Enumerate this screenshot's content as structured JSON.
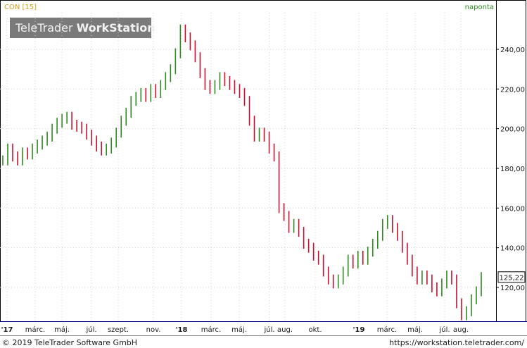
{
  "header": {
    "symbol_label": "CON [15]",
    "interval_label": "naponta",
    "symbol_color": "#d4a017",
    "interval_color": "#2e8b20"
  },
  "watermark": {
    "part1": "TeleTrader",
    "part2": "WorkStation"
  },
  "footer": {
    "copyright": "© 2019 TeleTrader Software GmbH",
    "url": "https://workstation.teletrader.com/"
  },
  "colors": {
    "up": "#2e8b20",
    "down": "#c8102e",
    "grid": "#cfcfcf",
    "last_box_border": "#000000",
    "bottom_line": "#000080"
  },
  "chart_data": {
    "type": "line",
    "title": "",
    "xlabel": "",
    "ylabel": "",
    "ylim": [
      100,
      260
    ],
    "y_ticks": [
      "120,00",
      "140,00",
      "160,00",
      "180,00",
      "200,00",
      "220,00",
      "240,00"
    ],
    "x_ticks": [
      "'17",
      "márc.",
      "máj.",
      "júl.",
      "szept.",
      "nov.",
      "'18",
      "márc.",
      "máj.",
      "júl.",
      "aug.",
      "okt.",
      "'19",
      "márc.",
      "máj.",
      "júl.",
      "aug."
    ],
    "x_tick_bold": [
      "'17",
      "'18",
      "'19"
    ],
    "last_value_label": "125,22",
    "last_value": 125.22,
    "grid": true,
    "series": [
      {
        "values": [
          184,
          190,
          186,
          184,
          188,
          187,
          190,
          192,
          194,
          196,
          200,
          203,
          205,
          206,
          202,
          201,
          200,
          197,
          194,
          191,
          189,
          190,
          193,
          198,
          204,
          208,
          214,
          216,
          218,
          216,
          220,
          218,
          222,
          226,
          230,
          238,
          250,
          246,
          242,
          236,
          228,
          222,
          220,
          222,
          226,
          224,
          222,
          220,
          218,
          214,
          204,
          196,
          198,
          196,
          190,
          186,
          160,
          156,
          150,
          152,
          148,
          142,
          140,
          136,
          134,
          128,
          124,
          122,
          124,
          128,
          134,
          132,
          136,
          134,
          138,
          142,
          146,
          152,
          154,
          150,
          146,
          140,
          134,
          128,
          124,
          126,
          124,
          120,
          118,
          122,
          126,
          124,
          112,
          106,
          108,
          114,
          118,
          125.22
        ]
      }
    ]
  }
}
